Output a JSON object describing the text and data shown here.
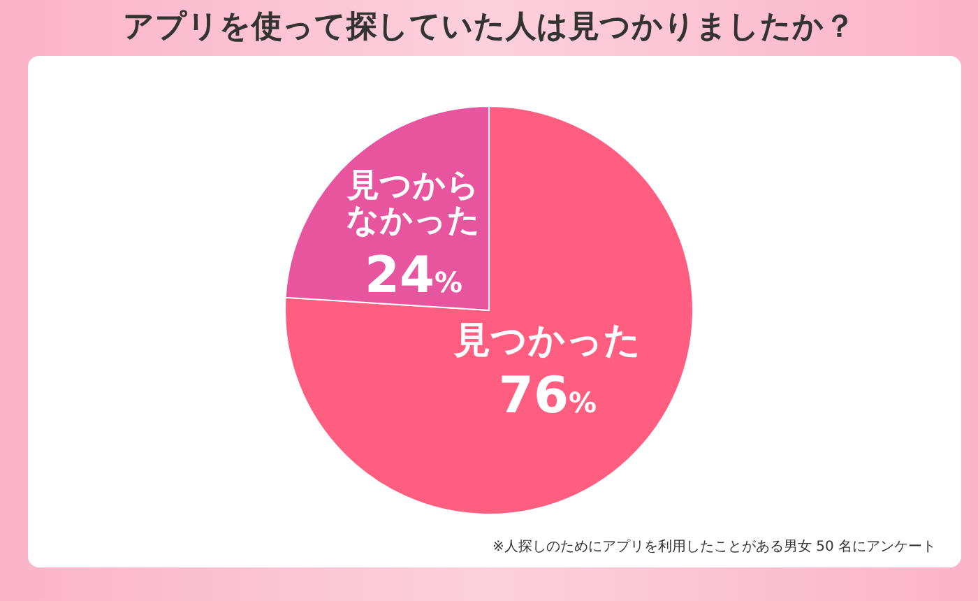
{
  "chart_data": {
    "type": "pie",
    "title": "アプリを使って探していた人は見つかりましたか？",
    "categories": [
      "見つかった",
      "見つからなかった"
    ],
    "values": [
      76,
      24
    ],
    "colors": [
      "#ff5e80",
      "#e8559f"
    ],
    "value_labels": [
      "76%",
      "24%"
    ],
    "annotations": [
      "※人探しのためにアプリを利用したことがある男女 50 名にアンケート"
    ]
  }
}
